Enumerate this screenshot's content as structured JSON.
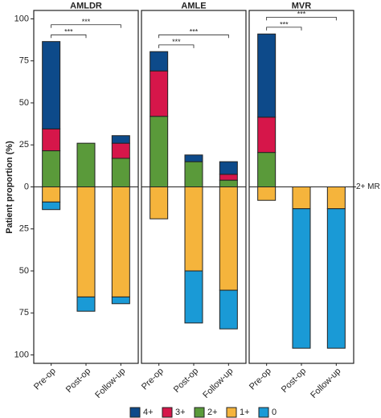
{
  "chart_data": {
    "type": "bar",
    "stacked": true,
    "ylabel": "Patient proportion (%)",
    "ylim": [
      -105,
      105
    ],
    "yticks": [
      100,
      75,
      50,
      25,
      0,
      {
        "value": -25,
        "label": "25"
      },
      {
        "value": -50,
        "label": "50"
      },
      {
        "value": -75,
        "label": "75"
      },
      {
        "value": -100,
        "label": "100"
      }
    ],
    "zero_label": "2+ MR",
    "categories": [
      "Pre-op",
      "Post-op",
      "Follow-up"
    ],
    "legend": [
      {
        "name": "4+",
        "color": "#0d4a8a"
      },
      {
        "name": "3+",
        "color": "#d6164a"
      },
      {
        "name": "2+",
        "color": "#5a9a3a"
      },
      {
        "name": "1+",
        "color": "#f5b43c"
      },
      {
        "name": "0",
        "color": "#1a9ad6"
      }
    ],
    "panels": [
      {
        "title": "AMLDR",
        "series": [
          {
            "values": [
              52,
              0,
              4.5
            ]
          },
          {
            "values": [
              13,
              0,
              9
            ]
          },
          {
            "values": [
              21.5,
              26,
              17
            ]
          },
          {
            "values": [
              -9,
              -65.5,
              -65.5
            ]
          },
          {
            "values": [
              -4.5,
              -8.5,
              -4
            ]
          }
        ],
        "brackets": [
          {
            "label": "***",
            "from": 0,
            "to": 1
          },
          {
            "label": "***",
            "from": 0,
            "to": 2
          }
        ]
      },
      {
        "title": "AMLE",
        "series": [
          {
            "values": [
              11.5,
              4,
              7.5
            ]
          },
          {
            "values": [
              27,
              0,
              3.5
            ]
          },
          {
            "values": [
              42,
              15,
              4
            ]
          },
          {
            "values": [
              -19,
              -50,
              -61.5
            ]
          },
          {
            "values": [
              0,
              -31,
              -23
            ]
          }
        ],
        "brackets": [
          {
            "label": "***",
            "from": 0,
            "to": 1
          },
          {
            "label": "***",
            "from": 0,
            "to": 2
          }
        ]
      },
      {
        "title": "MVR",
        "series": [
          {
            "values": [
              49.5,
              0,
              0
            ]
          },
          {
            "values": [
              21,
              0,
              0
            ]
          },
          {
            "values": [
              20.5,
              0,
              0
            ]
          },
          {
            "values": [
              -8,
              -13,
              -13
            ]
          },
          {
            "values": [
              0,
              -83,
              -83
            ]
          }
        ],
        "brackets": [
          {
            "label": "***",
            "from": 0,
            "to": 1
          },
          {
            "label": "***",
            "from": 0,
            "to": 2
          }
        ]
      }
    ]
  }
}
